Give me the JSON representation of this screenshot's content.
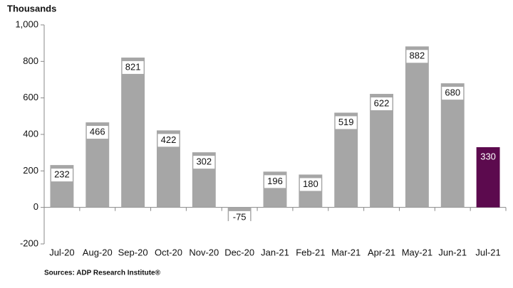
{
  "chart_data": {
    "type": "bar",
    "y_axis_label": "Thousands",
    "source": "Sources: ADP Research Institute®",
    "categories": [
      "Jul-20",
      "Aug-20",
      "Sep-20",
      "Oct-20",
      "Nov-20",
      "Dec-20",
      "Jan-21",
      "Feb-21",
      "Mar-21",
      "Apr-21",
      "May-21",
      "Jun-21",
      "Jul-21"
    ],
    "values": [
      232,
      466,
      821,
      422,
      302,
      -75,
      196,
      180,
      519,
      622,
      882,
      680,
      330
    ],
    "color": "#a6a6a6",
    "colors": [
      "#a6a6a6",
      "#a6a6a6",
      "#a6a6a6",
      "#a6a6a6",
      "#a6a6a6",
      "#a6a6a6",
      "#a6a6a6",
      "#a6a6a6",
      "#a6a6a6",
      "#a6a6a6",
      "#a6a6a6",
      "#a6a6a6",
      "#5c0a4e"
    ],
    "ylim": [
      -200,
      1000
    ],
    "yticks": [
      -200,
      0,
      200,
      400,
      600,
      800,
      {
        "value": 1000,
        "label": "1,000"
      }
    ],
    "grid": false
  }
}
